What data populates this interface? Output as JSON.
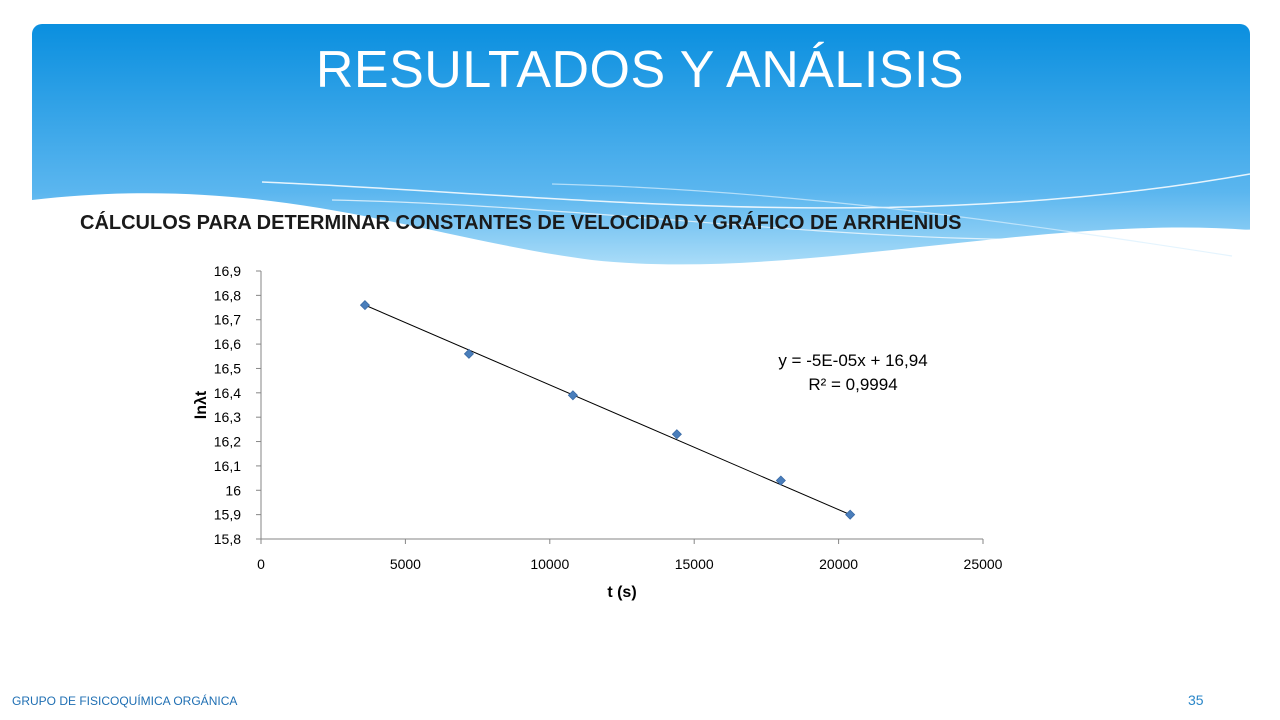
{
  "slide": {
    "title": "RESULTADOS Y ANÁLISIS",
    "subtitle": "CÁLCULOS PARA DETERMINAR CONSTANTES DE VELOCIDAD Y GRÁFICO DE ARRHENIUS",
    "footer_left": "GRUPO DE FISICOQUÍMICA  ORGÁNICA",
    "page_number": "35",
    "colors": {
      "header_top": "#0a8fdf",
      "header_bottom": "#7cc6f4",
      "marker": "#4a7ebb",
      "footer": "#1f6fb3"
    }
  },
  "chart_data": {
    "type": "scatter",
    "title": "",
    "xlabel": "t (s)",
    "ylabel": "lnλt",
    "xlim": [
      0,
      25000
    ],
    "ylim": [
      15.8,
      16.9
    ],
    "x_ticks": [
      "0",
      "5000",
      "10000",
      "15000",
      "20000",
      "25000"
    ],
    "y_ticks": [
      "15,8",
      "15,9",
      "16",
      "16,1",
      "16,2",
      "16,3",
      "16,4",
      "16,5",
      "16,6",
      "16,7",
      "16,8",
      "16,9"
    ],
    "series": [
      {
        "points": [
          {
            "x": 3600,
            "y": 16.76
          },
          {
            "x": 7200,
            "y": 16.56
          },
          {
            "x": 10800,
            "y": 16.39
          },
          {
            "x": 14400,
            "y": 16.23
          },
          {
            "x": 18000,
            "y": 16.04
          },
          {
            "x": 20400,
            "y": 15.9
          }
        ]
      }
    ],
    "trendline": {
      "type": "linear",
      "x_range": [
        3600,
        20400
      ],
      "y_start": 16.76,
      "y_end": 15.9
    },
    "equation_text": [
      "y = -5E-05x + 16,94",
      "R² = 0,9994"
    ],
    "grid": false,
    "legend": "none"
  }
}
